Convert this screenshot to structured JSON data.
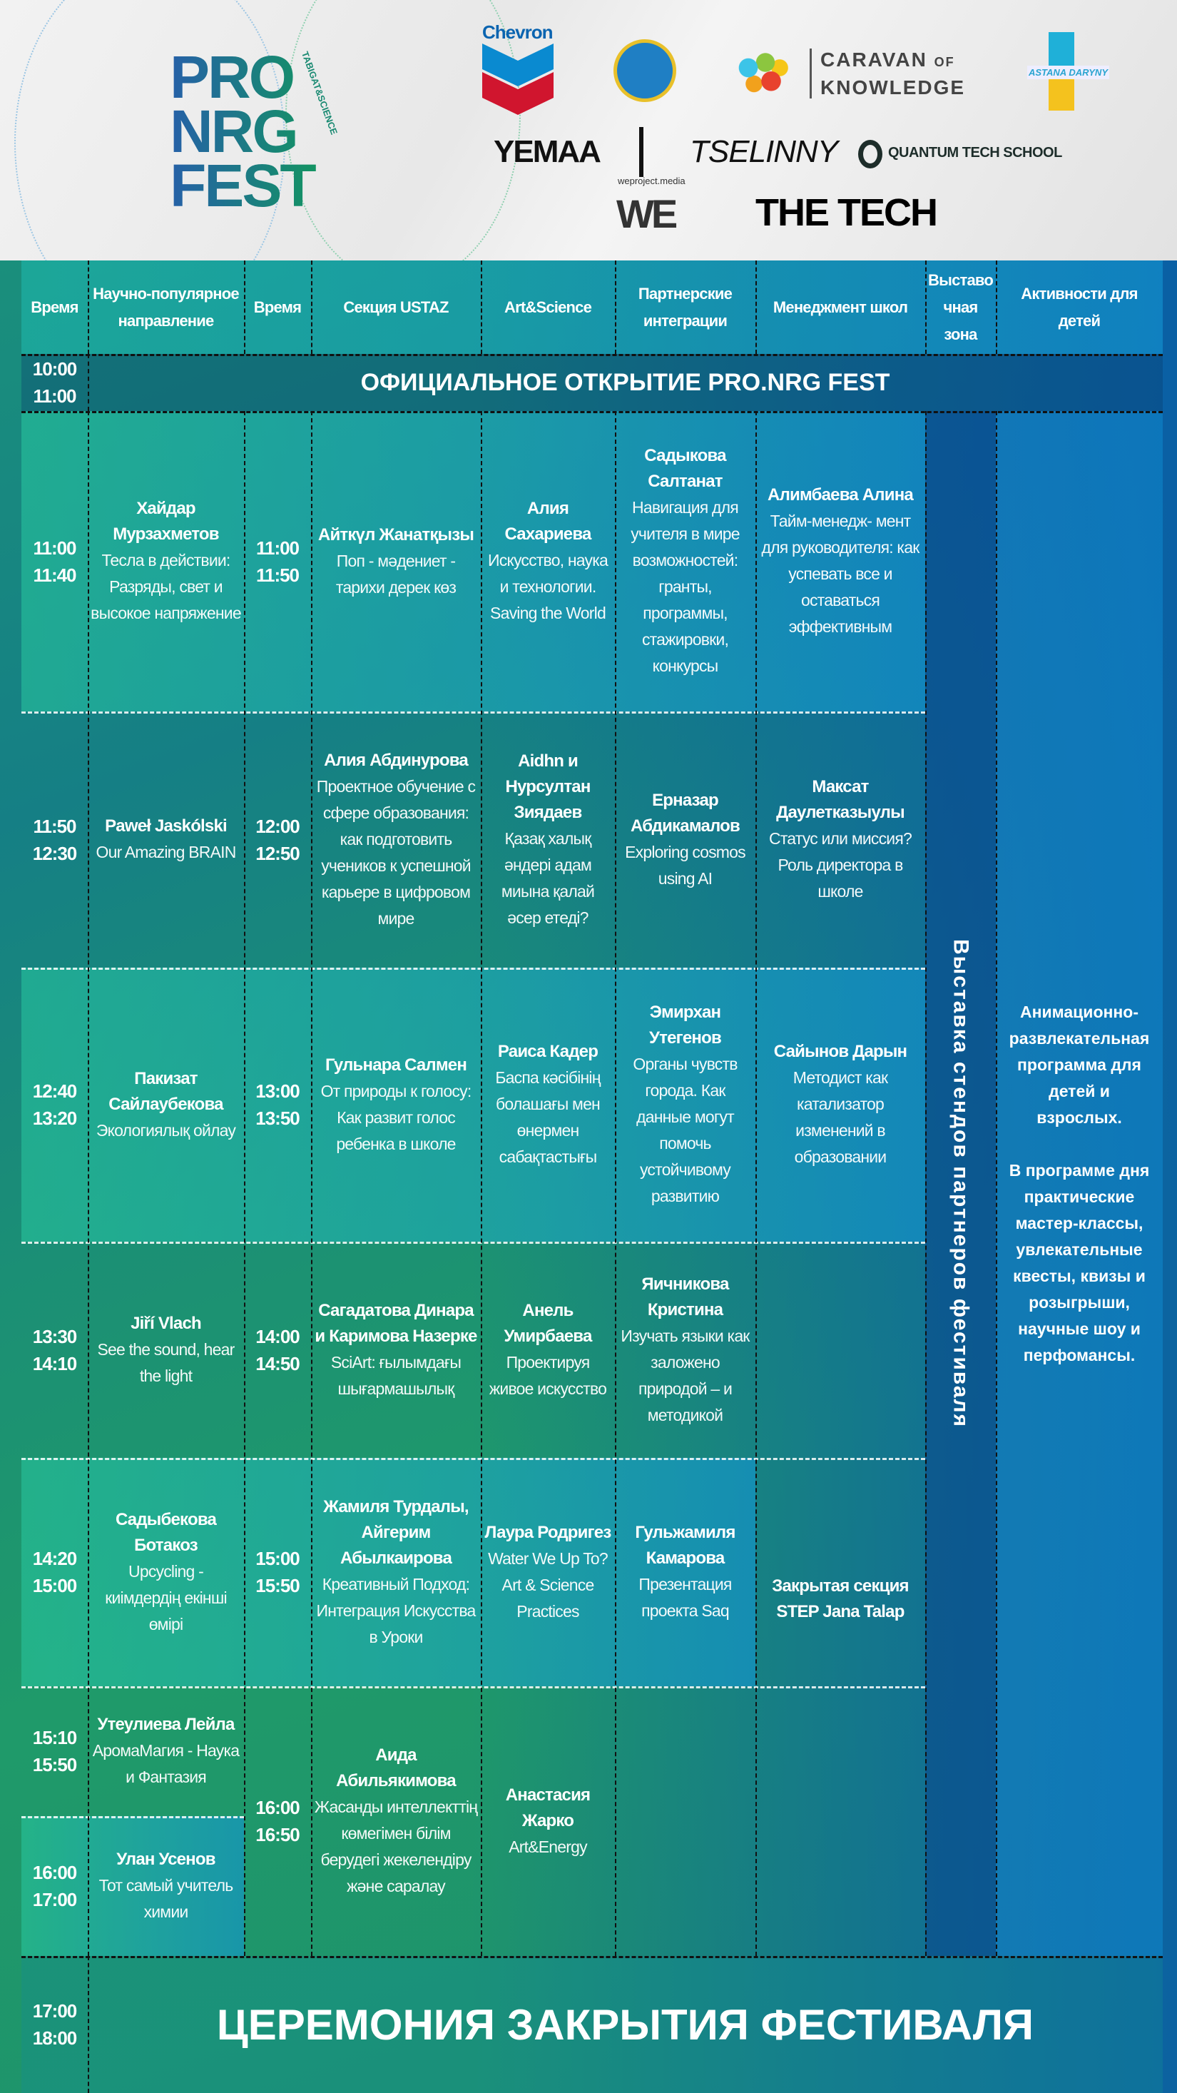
{
  "logos": {
    "festival": {
      "line1": "PRO",
      "line2": "NRG",
      "line3": "FEST",
      "tag": "TABIGAT&SCIENCE"
    },
    "chevron": "Chevron",
    "caravan": {
      "line1": "CARAVAN",
      "of": "OF",
      "line2": "KNOWLEDGE"
    },
    "astana": "ASTANA DARYNY",
    "yemaa": "YEMAA",
    "tselinny": "TSELINNY",
    "quantum": "QUANTUM TECH SCHOOL",
    "we": {
      "small": "weproject.media",
      "big": "WE"
    },
    "thetech": "THE TECH"
  },
  "header": [
    "Время",
    "Научно-популярное направление",
    "Время",
    "Секция USTAZ",
    "Art&Science",
    "Партнерские интеграции",
    "Менеджмент школ",
    "Выставо чная зона",
    "Активности для детей"
  ],
  "opening": {
    "time": [
      "10:00",
      "11:00"
    ],
    "title": "ОФИЦИАЛЬНОЕ ОТКРЫТИЕ PRO.NRG FEST"
  },
  "rows": [
    {
      "t1": [
        "11:00",
        "11:40"
      ],
      "t2": [
        "11:00",
        "11:50"
      ],
      "pop": {
        "name": "Хайдар Мурзахметов",
        "title": "Тесла в действии: Разряды, свет и высокое напряжение"
      },
      "ustaz": {
        "name": "Айткүл Жанатқызы",
        "title": "Поп - мәдениет - тарихи дерек көз"
      },
      "art": {
        "name": "Алия Сахариева",
        "title": "Искусство, наука и технологии. Saving the World"
      },
      "partner": {
        "name": "Садыкова Салтанат",
        "title": "Навигация для учителя в мире возможностей: гранты, программы, стажировки, конкурсы"
      },
      "mgmt": {
        "name": "Алимбаева Алина",
        "title": "Тайм-менедж- мент для руководителя: как успевать все и оставаться эффективным"
      }
    },
    {
      "t1": [
        "11:50",
        "12:30"
      ],
      "t2": [
        "12:00",
        "12:50"
      ],
      "pop": {
        "name": "Paweł Jaskólski",
        "title": "Our Amazing BRAIN"
      },
      "ustaz": {
        "name": "Алия Абдинурова",
        "title": "Проектное обучение с сфере образования: как подготовить учеников к успешной карьере в цифровом мире"
      },
      "art": {
        "name": "Aidhn и Нурсултан Зиядаев",
        "title": "Қазақ халық әндері адам миына қалай әсер етеді?"
      },
      "partner": {
        "name": "Ерназар Абдикамалов",
        "title": "Exploring cosmos using AI"
      },
      "mgmt": {
        "name": "Максат Даулетказыулы",
        "title": "Статус или миссия? Роль директора в школе"
      }
    },
    {
      "t1": [
        "12:40",
        "13:20"
      ],
      "t2": [
        "13:00",
        "13:50"
      ],
      "pop": {
        "name": "Пакизат Сайлаубекова",
        "title": "Экологиялық ойлау"
      },
      "ustaz": {
        "name": "Гульнара Салмен",
        "title": "От природы к голосу: Как развит голос ребенка в школе"
      },
      "art": {
        "name": "Раиса Кадер",
        "title": "Баспа кәсібінің болашағы мен өнермен сабақтастығы"
      },
      "partner": {
        "name": "Эмирхан Утегенов",
        "title": "Органы чувств города. Как данные могут помочь устойчивому развитию"
      },
      "mgmt": {
        "name": "Сайынов Дарын",
        "title": "Методист как катализатор изменений в образовании"
      }
    },
    {
      "t1": [
        "13:30",
        "14:10"
      ],
      "t2": [
        "14:00",
        "14:50"
      ],
      "pop": {
        "name": "Jiří Vlach",
        "title": "See the sound, hear the light"
      },
      "ustaz": {
        "name": "Сагадатова Динара и Каримова Назерке",
        "title": "SciArt: ғылымдағы шығармашылық"
      },
      "art": {
        "name": "Анель Умирбаева",
        "title": "Проектируя живое искусство"
      },
      "partner": {
        "name": "Яичникова Кристина",
        "title": "Изучать языки как заложено природой – и методикой"
      }
    },
    {
      "t1": [
        "14:20",
        "15:00"
      ],
      "t2": [
        "15:00",
        "15:50"
      ],
      "pop": {
        "name": "Садыбекова Ботакоз",
        "title": "Upcycling - киімдердің екінші өмірі"
      },
      "ustaz": {
        "name": "Жамиля Турдалы, Айгерим Абылкаирова",
        "title": "Креативный Подход: Интеграция Искусства в Уроки"
      },
      "art": {
        "name": "Лаура Родригез",
        "title": "Water We Up To? Art & Science Practices"
      },
      "partner": {
        "name": "Гульжамиля Камарова",
        "title": "Презентация проекта Saq"
      }
    },
    {
      "t1": [
        "15:10",
        "15:50"
      ],
      "t1b": [
        "16:00",
        "17:00"
      ],
      "t2": [
        "16:00",
        "16:50"
      ],
      "pop": {
        "name": "Утеулиева Лейла",
        "title": "АромаМагия - Наука и Фантазия"
      },
      "pop_b": {
        "name": "Улан Усенов",
        "title": "Тот самый учитель химии"
      },
      "ustaz": {
        "name": "Аида Абильякимова",
        "title": "Жасанды интеллекттің көмегімен білім берудегі жекелендіру және саралау"
      },
      "art": {
        "name": "Анастасия Жарко",
        "title": "Art&Energy"
      }
    }
  ],
  "closed_section": "Закрытая секция STEP Jana Talap",
  "exhibition": "Выставка стендов партнеров фестиваля",
  "activities": {
    "p1": "Анимационно-развлекательная программа для детей и взрослых.",
    "p2": "В программе дня практические мастер-классы, увлекательные квесты, квизы и розыгрыши, научные шоу и перфомансы."
  },
  "closing": {
    "time": [
      "17:00",
      "18:00"
    ],
    "title": "ЦЕРЕМОНИЯ ЗАКРЫТИЯ ФЕСТИВАЛЯ"
  }
}
